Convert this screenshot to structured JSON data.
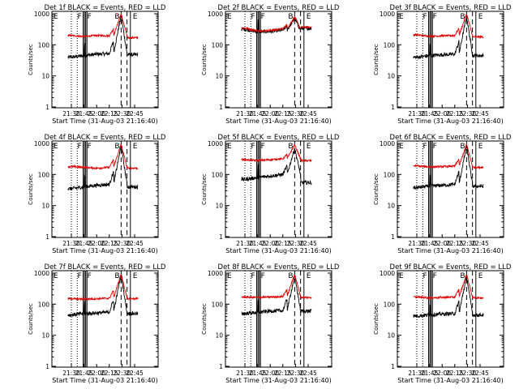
{
  "colors": {
    "events": "#000000",
    "lld": "#dd0000",
    "axes": "#000000",
    "background": "#ffffff"
  },
  "figure": {
    "xtick_labels": [
      "21:30",
      "21:45",
      "22:00",
      "22:15",
      "22:30",
      "22:45"
    ],
    "ytick_labels": [
      "1",
      "10",
      "100",
      "1000"
    ],
    "marker_labels": [
      "E",
      "F",
      "B",
      "E"
    ],
    "ylabel": "Counts/sec",
    "xlabel": "Start Time (31-Aug-03 21:16:40)"
  },
  "chart_data": [
    {
      "type": "line",
      "title": "Det 1f BLACK = Events, RED = LLD",
      "xlabel": "Start Time (31-Aug-03 21:16:40)",
      "ylabel": "Counts/sec",
      "x": [
        "21:30",
        "21:45",
        "22:00",
        "22:15",
        "22:30",
        "22:45"
      ],
      "ylim": [
        1,
        1000
      ],
      "yscale": "log",
      "series": [
        {
          "name": "Events",
          "values": [
            40,
            45,
            50,
            52,
            900,
            48
          ]
        },
        {
          "name": "LLD",
          "values": [
            200,
            185,
            200,
            195,
            1000,
            170
          ]
        }
      ]
    },
    {
      "type": "line",
      "title": "Det 2f BLACK = Events, RED = LLD",
      "xlabel": "Start Time (31-Aug-03 21:16:40)",
      "ylabel": "Counts/sec",
      "x": [
        "21:30",
        "21:45",
        "22:00",
        "22:15",
        "22:30",
        "22:45"
      ],
      "ylim": [
        1,
        1000
      ],
      "yscale": "log",
      "series": [
        {
          "name": "Events",
          "values": [
            320,
            260,
            270,
            300,
            700,
            340
          ]
        },
        {
          "name": "LLD",
          "values": [
            350,
            280,
            290,
            330,
            800,
            370
          ]
        }
      ]
    },
    {
      "type": "line",
      "title": "Det 3f BLACK = Events, RED = LLD",
      "xlabel": "Start Time (31-Aug-03 21:16:40)",
      "ylabel": "Counts/sec",
      "x": [
        "21:30",
        "21:45",
        "22:00",
        "22:15",
        "22:30",
        "22:45"
      ],
      "ylim": [
        1,
        1000
      ],
      "yscale": "log",
      "series": [
        {
          "name": "Events",
          "values": [
            40,
            45,
            48,
            50,
            850,
            45
          ]
        },
        {
          "name": "LLD",
          "values": [
            210,
            190,
            195,
            200,
            1000,
            180
          ]
        }
      ]
    },
    {
      "type": "line",
      "title": "Det 4f BLACK = Events, RED = LLD",
      "xlabel": "Start Time (31-Aug-03 21:16:40)",
      "ylabel": "Counts/sec",
      "x": [
        "21:30",
        "21:45",
        "22:00",
        "22:15",
        "22:30",
        "22:45"
      ],
      "ylim": [
        1,
        1000
      ],
      "yscale": "log",
      "series": [
        {
          "name": "Events",
          "values": [
            35,
            40,
            45,
            48,
            850,
            40
          ]
        },
        {
          "name": "LLD",
          "values": [
            180,
            170,
            160,
            170,
            950,
            160
          ]
        }
      ]
    },
    {
      "type": "line",
      "title": "Det 5f BLACK = Events, RED = LLD",
      "xlabel": "Start Time (31-Aug-03 21:16:40)",
      "ylabel": "Counts/sec",
      "x": [
        "21:30",
        "21:45",
        "22:00",
        "22:15",
        "22:30",
        "22:45"
      ],
      "ylim": [
        1,
        1000
      ],
      "yscale": "log",
      "series": [
        {
          "name": "Events",
          "values": [
            70,
            80,
            90,
            100,
            700,
            55
          ]
        },
        {
          "name": "LLD",
          "values": [
            300,
            280,
            300,
            320,
            900,
            280
          ]
        }
      ]
    },
    {
      "type": "line",
      "title": "Det 6f BLACK = Events, RED = LLD",
      "xlabel": "Start Time (31-Aug-03 21:16:40)",
      "ylabel": "Counts/sec",
      "x": [
        "21:30",
        "21:45",
        "22:00",
        "22:15",
        "22:30",
        "22:45"
      ],
      "ylim": [
        1,
        1000
      ],
      "yscale": "log",
      "series": [
        {
          "name": "Events",
          "values": [
            38,
            42,
            45,
            48,
            850,
            42
          ]
        },
        {
          "name": "LLD",
          "values": [
            190,
            175,
            180,
            185,
            950,
            170
          ]
        }
      ]
    },
    {
      "type": "line",
      "title": "Det 7f BLACK = Events, RED = LLD",
      "xlabel": "Start Time (31-Aug-03 21:16:40)",
      "ylabel": "Counts/sec",
      "x": [
        "21:30",
        "21:45",
        "22:00",
        "22:15",
        "22:30",
        "22:45"
      ],
      "ylim": [
        1,
        1000
      ],
      "yscale": "log",
      "series": [
        {
          "name": "Events",
          "values": [
            45,
            50,
            52,
            55,
            900,
            50
          ]
        },
        {
          "name": "LLD",
          "values": [
            150,
            145,
            150,
            155,
            950,
            150
          ]
        }
      ]
    },
    {
      "type": "line",
      "title": "Det 8f BLACK = Events, RED = LLD",
      "xlabel": "Start Time (31-Aug-03 21:16:40)",
      "ylabel": "Counts/sec",
      "x": [
        "21:30",
        "21:45",
        "22:00",
        "22:15",
        "22:30",
        "22:45"
      ],
      "ylim": [
        1,
        1000
      ],
      "yscale": "log",
      "series": [
        {
          "name": "Events",
          "values": [
            50,
            55,
            60,
            62,
            850,
            60
          ]
        },
        {
          "name": "LLD",
          "values": [
            170,
            165,
            170,
            175,
            950,
            165
          ]
        }
      ]
    },
    {
      "type": "line",
      "title": "Det 9f BLACK = Events, RED = LLD",
      "xlabel": "Start Time (31-Aug-03 21:16:40)",
      "ylabel": "Counts/sec",
      "x": [
        "21:30",
        "21:45",
        "22:00",
        "22:15",
        "22:30",
        "22:45"
      ],
      "ylim": [
        1,
        1000
      ],
      "yscale": "log",
      "series": [
        {
          "name": "Events",
          "values": [
            42,
            45,
            48,
            50,
            800,
            45
          ]
        },
        {
          "name": "LLD",
          "values": [
            170,
            160,
            165,
            170,
            900,
            160
          ]
        }
      ]
    }
  ]
}
